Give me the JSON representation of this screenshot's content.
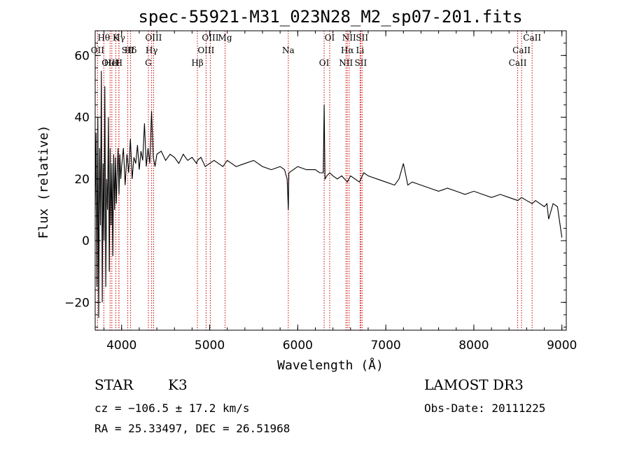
{
  "chart_data": {
    "type": "line",
    "title": "spec-55921-M31_023N28_M2_sp07-201.fits",
    "xlabel": "Wavelength (Å)",
    "ylabel": "Flux (relative)",
    "xlim": [
      3700,
      9050
    ],
    "ylim": [
      -29,
      68
    ],
    "xticks": [
      4000,
      5000,
      6000,
      7000,
      8000,
      9000
    ],
    "yticks": [
      -20,
      0,
      20,
      40,
      60
    ],
    "series": [
      {
        "name": "flux",
        "x": [
          3700,
          3710,
          3720,
          3730,
          3740,
          3750,
          3760,
          3770,
          3780,
          3790,
          3800,
          3810,
          3820,
          3830,
          3840,
          3850,
          3860,
          3870,
          3880,
          3890,
          3900,
          3910,
          3920,
          3930,
          3940,
          3950,
          3960,
          3970,
          3980,
          3990,
          4000,
          4020,
          4040,
          4060,
          4080,
          4100,
          4120,
          4140,
          4160,
          4180,
          4200,
          4220,
          4240,
          4260,
          4280,
          4300,
          4320,
          4340,
          4360,
          4380,
          4400,
          4450,
          4500,
          4550,
          4600,
          4650,
          4700,
          4750,
          4800,
          4850,
          4861,
          4900,
          4950,
          5000,
          5050,
          5100,
          5150,
          5175,
          5200,
          5250,
          5300,
          5400,
          5500,
          5600,
          5700,
          5800,
          5850,
          5880,
          5893,
          5900,
          5950,
          6000,
          6100,
          6200,
          6250,
          6290,
          6300,
          6310,
          6330,
          6363,
          6400,
          6450,
          6500,
          6563,
          6600,
          6650,
          6700,
          6750,
          6800,
          6900,
          7000,
          7100,
          7150,
          7200,
          7250,
          7300,
          7400,
          7500,
          7600,
          7700,
          7800,
          7900,
          8000,
          8100,
          8200,
          8300,
          8400,
          8500,
          8542,
          8600,
          8662,
          8700,
          8750,
          8800,
          8830,
          8850,
          8900,
          8950,
          8980,
          9000
        ],
        "y": [
          10,
          35,
          -15,
          40,
          -25,
          30,
          5,
          55,
          -20,
          25,
          0,
          50,
          -15,
          20,
          10,
          40,
          -10,
          30,
          5,
          25,
          -5,
          28,
          10,
          27,
          12,
          22,
          30,
          15,
          28,
          20,
          24,
          30,
          18,
          28,
          22,
          33,
          20,
          27,
          25,
          31,
          23,
          29,
          26,
          38,
          24,
          30,
          25,
          42,
          27,
          24,
          28,
          29,
          26,
          28,
          27,
          25,
          28,
          26,
          27,
          25,
          26,
          27,
          24,
          25,
          26,
          25,
          24,
          25,
          26,
          25,
          24,
          25,
          26,
          24,
          23,
          24,
          23,
          20,
          10,
          22,
          23,
          24,
          23,
          23,
          22,
          22,
          44,
          20,
          21,
          22,
          21,
          20,
          21,
          19,
          21,
          20,
          19,
          22,
          21,
          20,
          19,
          18,
          20,
          25,
          18,
          19,
          18,
          17,
          16,
          17,
          16,
          15,
          16,
          15,
          14,
          15,
          14,
          13,
          14,
          13,
          12,
          13,
          12,
          11,
          12,
          7,
          12,
          11,
          5,
          1
        ],
        "color": "#000000"
      }
    ],
    "lines": [
      {
        "label": "Hθ",
        "wave": 3798
      },
      {
        "label": "OII",
        "wave": 3727
      },
      {
        "label": "OIII",
        "wave": 3869
      },
      {
        "label": "K",
        "wave": 3934
      },
      {
        "label": "Hδ",
        "wave": 4102
      },
      {
        "label": "HeI",
        "wave": 3889
      },
      {
        "label": "Hγ",
        "wave": 3970
      },
      {
        "label": "SII",
        "wave": 4070
      },
      {
        "label": "H",
        "wave": 3969
      },
      {
        "label": "OIII",
        "wave": 4363
      },
      {
        "label": "Hγ",
        "wave": 4341
      },
      {
        "label": "G",
        "wave": 4304
      },
      {
        "label": "OIII",
        "wave": 5007
      },
      {
        "label": "OIII",
        "wave": 4959
      },
      {
        "label": "Hβ",
        "wave": 4861
      },
      {
        "label": "Mg",
        "wave": 5175
      },
      {
        "label": "Na",
        "wave": 5893
      },
      {
        "label": "OI",
        "wave": 6300
      },
      {
        "label": "OI",
        "wave": 6363
      },
      {
        "label": "Hα",
        "wave": 6563
      },
      {
        "label": "SII",
        "wave": 6716
      },
      {
        "label": "NII",
        "wave": 6584
      },
      {
        "label": "Li",
        "wave": 6708
      },
      {
        "label": "NII",
        "wave": 6548
      },
      {
        "label": "SII",
        "wave": 6731
      },
      {
        "label": "CaII",
        "wave": 8542
      },
      {
        "label": "CaII",
        "wave": 8498
      },
      {
        "label": "CaII",
        "wave": 8662
      }
    ]
  },
  "info": {
    "class": "STAR",
    "subclass": "K3",
    "survey": "LAMOST DR3",
    "cz": "cz = −106.5 ± 17.2 km/s",
    "obs_date": "Obs-Date: 20111225",
    "radec": "RA =  25.33497, DEC =  26.51968"
  },
  "colors": {
    "axis": "#000000",
    "line_marker": "#cc0000",
    "spectrum": "#000000"
  }
}
